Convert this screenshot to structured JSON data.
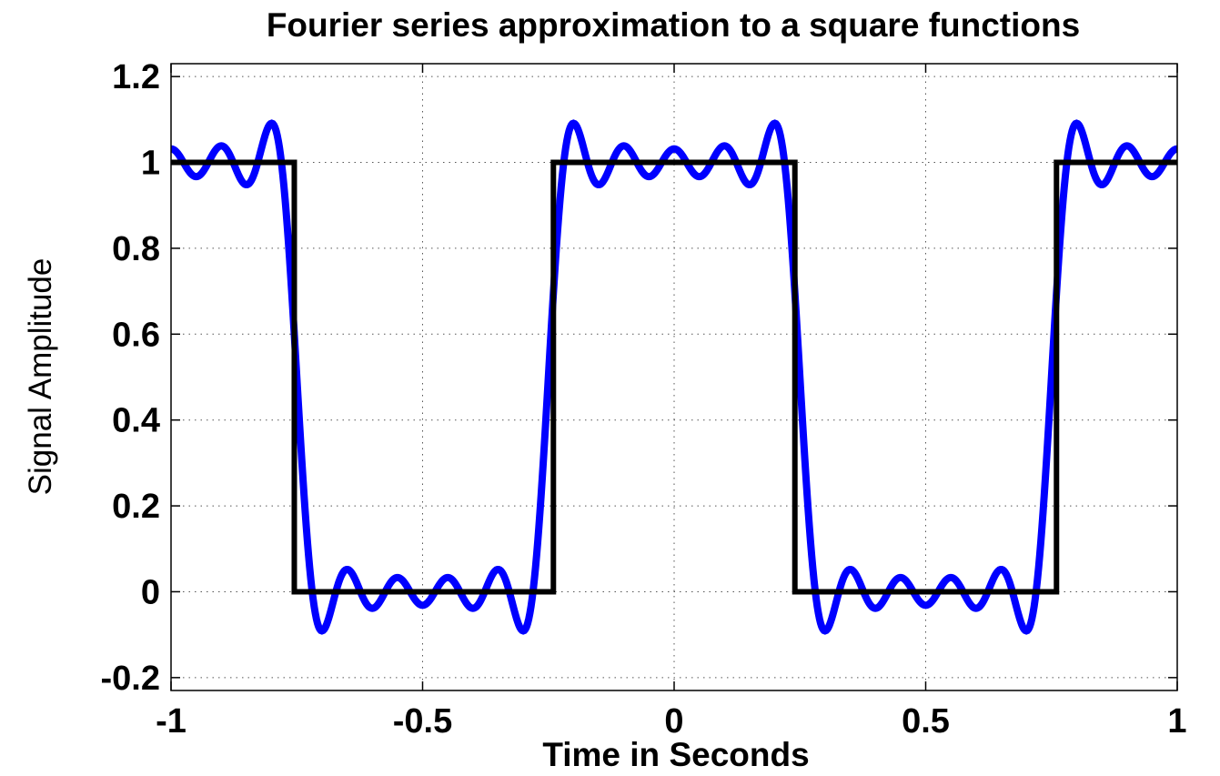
{
  "chart_data": {
    "type": "line",
    "title": "Fourier series approximation to a square functions",
    "xlabel": "Time in Seconds",
    "ylabel": "Signal Amplitude",
    "xlim": [
      -1,
      1
    ],
    "ylim": [
      -0.23,
      1.23
    ],
    "xticks": [
      -1,
      -0.5,
      0,
      0.5,
      1
    ],
    "xtick_labels": [
      "-1",
      "-0.5",
      "0",
      "0.5",
      "1"
    ],
    "yticks": [
      -0.2,
      0,
      0.2,
      0.4,
      0.6,
      0.8,
      1,
      1.2
    ],
    "ytick_labels": [
      "-0.2",
      "0",
      "0.2",
      "0.4",
      "0.6",
      "0.8",
      "1",
      "1.2"
    ],
    "grid": true,
    "legend": "none",
    "series": [
      {
        "color": "#0000ff",
        "style": "solid",
        "description": "Fourier series partial sum (0.5 + odd harmonics up to 9th) of square wave, period 1",
        "function": "fourier_square",
        "period": 1,
        "harmonics": [
          1,
          3,
          5,
          7,
          9
        ]
      },
      {
        "color": "#000000",
        "style": "solid",
        "points": [
          [
            -1,
            1
          ],
          [
            -0.755,
            1
          ],
          [
            -0.755,
            0
          ],
          [
            -0.24,
            0
          ],
          [
            -0.24,
            1
          ],
          [
            0.24,
            1
          ],
          [
            0.24,
            0
          ],
          [
            0.76,
            0
          ],
          [
            0.76,
            1
          ],
          [
            1,
            1
          ]
        ]
      }
    ]
  }
}
